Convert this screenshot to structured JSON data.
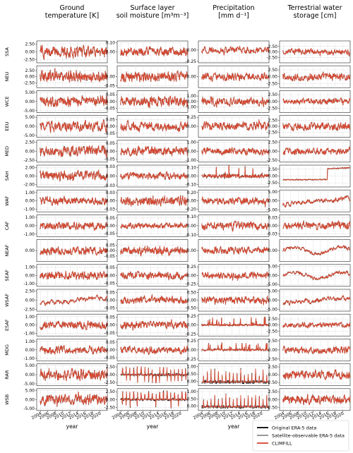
{
  "chart_data": {
    "type": "line",
    "title": "",
    "x_range": [
      2003,
      2022
    ],
    "columns": [
      {
        "title_lines": [
          "Ground",
          "temperature [K]"
        ],
        "variable": "Ground temperature",
        "unit": "K"
      },
      {
        "title_lines": [
          "Surface layer",
          "soil moisture [m³m⁻³]"
        ],
        "variable": "Surface layer soil moisture",
        "unit": "m³m⁻³"
      },
      {
        "title_lines": [
          "Precipitation",
          "[mm d⁻¹]"
        ],
        "variable": "Precipitation",
        "unit": "mm d⁻¹"
      },
      {
        "title_lines": [
          "Terrestrial water",
          "storage [cm]"
        ],
        "variable": "Terrestrial water storage",
        "unit": "cm"
      }
    ],
    "regions": [
      "SSA",
      "NEU",
      "WCE",
      "EEU",
      "MED",
      "SAH",
      "WAF",
      "CAF",
      "NEAF",
      "SEAF",
      "WSAF",
      "ESAF",
      "MDG",
      "RAR",
      "WSB"
    ],
    "panels": [
      [
        {
          "ylim": [
            -3.5,
            3.5
          ],
          "ticks": [
            "2.50",
            "0.00",
            "-2.50"
          ],
          "pattern": "noise",
          "amp": 2.0
        },
        {
          "ylim": [
            -0.12,
            0.12
          ],
          "ticks": [
            "0.10",
            "0.00"
          ],
          "pattern": "noise",
          "amp": 0.05
        },
        {
          "ylim": [
            -0.28,
            0.2
          ],
          "ticks": [
            "0.00",
            "-0.25"
          ],
          "pattern": "noise",
          "amp": 0.07
        },
        {
          "ylim": [
            -5,
            5
          ],
          "ticks": [
            "2.50",
            "0.00",
            "-2.50"
          ],
          "pattern": "noise",
          "amp": 1.5
        }
      ],
      [
        {
          "ylim": [
            -4.5,
            4.5
          ],
          "ticks": [
            "2.50",
            "0.00",
            "-2.50"
          ],
          "pattern": "noise",
          "amp": 2.5
        },
        {
          "ylim": [
            -0.06,
            0.06
          ],
          "ticks": [
            "0.00",
            "-0.05"
          ],
          "pattern": "noise",
          "amp": 0.03
        },
        {
          "ylim": [
            -0.8,
            0.8
          ],
          "ticks": [
            "0.00"
          ],
          "pattern": "noise",
          "amp": 0.3
        },
        {
          "ylim": [
            -4,
            4
          ],
          "ticks": [
            "2.50",
            "0.00",
            "-2.50"
          ],
          "pattern": "noise",
          "amp": 1.5
        }
      ],
      [
        {
          "ylim": [
            -6,
            6
          ],
          "ticks": [
            "5.00",
            "0.00",
            "-5.00"
          ],
          "pattern": "noise",
          "amp": 3.0
        },
        {
          "ylim": [
            -0.08,
            0.08
          ],
          "ticks": [
            "0.05",
            "0.00",
            "-0.05"
          ],
          "pattern": "noise",
          "amp": 0.04
        },
        {
          "ylim": [
            -2,
            2
          ],
          "ticks": [
            "1.00",
            "0.00",
            "-1.00"
          ],
          "pattern": "noise",
          "amp": 0.8
        },
        {
          "ylim": [
            -4,
            4
          ],
          "ticks": [
            "2.50",
            "0.00",
            "-2.50"
          ],
          "pattern": "noise",
          "amp": 1.2
        }
      ],
      [
        {
          "ylim": [
            -6,
            6
          ],
          "ticks": [
            "5.00",
            "0.00",
            "-5.00"
          ],
          "pattern": "noise",
          "amp": 3.0
        },
        {
          "ylim": [
            -0.08,
            0.08
          ],
          "ticks": [
            "0.05",
            "0.00",
            "-0.05"
          ],
          "pattern": "noise",
          "amp": 0.035
        },
        {
          "ylim": [
            -0.3,
            0.3
          ],
          "ticks": [
            "0.25",
            "0.00"
          ],
          "pattern": "noise",
          "amp": 0.12
        },
        {
          "ylim": [
            -4.5,
            4.5
          ],
          "ticks": [
            "2.50",
            "0.00",
            "-2.50"
          ],
          "pattern": "noise",
          "amp": 1.6
        }
      ],
      [
        {
          "ylim": [
            -3,
            3
          ],
          "ticks": [
            "2.50",
            "0.00",
            "-2.50"
          ],
          "pattern": "noise",
          "amp": 1.5
        },
        {
          "ylim": [
            -0.07,
            0.07
          ],
          "ticks": [
            "0.05",
            "0.00",
            "-0.05"
          ],
          "pattern": "noise",
          "amp": 0.03
        },
        {
          "ylim": [
            -1.2,
            1.2
          ],
          "ticks": [
            "1.00",
            "0.00",
            "-1.00"
          ],
          "pattern": "noise",
          "amp": 0.4
        },
        {
          "ylim": [
            -3,
            3
          ],
          "ticks": [
            "2.50",
            "0.00",
            "-2.50"
          ],
          "pattern": "noise",
          "amp": 1.0
        }
      ],
      [
        {
          "ylim": [
            -2.6,
            2.6
          ],
          "ticks": [
            "2.00",
            "0.00",
            "-2.00"
          ],
          "pattern": "noise",
          "amp": 1.2
        },
        {
          "ylim": [
            -0.035,
            0.035
          ],
          "ticks": [
            "0.03",
            "0.00",
            "-0.03"
          ],
          "pattern": "noise",
          "amp": 0.012
        },
        {
          "ylim": [
            -0.13,
            0.13
          ],
          "ticks": [
            "0.10",
            "0.00",
            "-0.10"
          ],
          "pattern": "spiky",
          "amp": 0.08
        },
        {
          "ylim": [
            -4,
            4
          ],
          "ticks": [
            "2.50",
            "0.00",
            "-2.50"
          ],
          "pattern": "step",
          "amp": 1.2
        }
      ],
      [
        {
          "ylim": [
            -1.3,
            1.3
          ],
          "ticks": [
            "1.00",
            "0.00",
            "-1.00"
          ],
          "pattern": "noise",
          "amp": 0.5
        },
        {
          "ylim": [
            -0.04,
            0.04
          ],
          "ticks": [
            "0.03",
            "0.00",
            "-0.03"
          ],
          "pattern": "noise",
          "amp": 0.018
        },
        {
          "ylim": [
            -0.26,
            0.26
          ],
          "ticks": [
            "0.20",
            "0.00",
            "-0.20"
          ],
          "pattern": "noise",
          "amp": 0.09
        },
        {
          "ylim": [
            -6,
            6
          ],
          "ticks": [
            "5.00",
            "0.00",
            "-5.00"
          ],
          "pattern": "trend",
          "amp": 2.0
        }
      ],
      [
        {
          "ylim": [
            -1.3,
            1.3
          ],
          "ticks": [
            "1.00",
            "0.00",
            "-1.00"
          ],
          "pattern": "noise",
          "amp": 0.5
        },
        {
          "ylim": [
            -0.07,
            0.07
          ],
          "ticks": [
            "0.05",
            "0.00",
            "-0.05"
          ],
          "pattern": "noise",
          "amp": 0.02
        },
        {
          "ylim": [
            -0.12,
            0.12
          ],
          "ticks": [
            "0.10",
            "0.00",
            "-0.10"
          ],
          "pattern": "noise",
          "amp": 0.05
        },
        {
          "ylim": [
            -0.04,
            0.04
          ],
          "ticks": [
            "0.03",
            "0.00",
            "-0.03"
          ],
          "pattern": "noise",
          "amp": 0.015
        }
      ],
      [
        {
          "ylim": [
            -1.6,
            1.6
          ],
          "ticks": [
            "0.00"
          ],
          "pattern": "noise",
          "amp": 0.6
        },
        {
          "ylim": [
            -0.1,
            0.1
          ],
          "ticks": [
            "0.05",
            "0.00",
            "-0.05"
          ],
          "pattern": "noise",
          "amp": 0.04
        },
        {
          "ylim": [
            -0.6,
            0.6
          ],
          "ticks": [
            "0.00"
          ],
          "pattern": "noise",
          "amp": 0.2
        },
        {
          "ylim": [
            -6,
            6
          ],
          "ticks": [
            "0.00"
          ],
          "pattern": "wave",
          "amp": 2.0
        }
      ],
      [
        {
          "ylim": [
            -1.3,
            1.3
          ],
          "ticks": [
            "1.00",
            "0.00",
            "-1.00"
          ],
          "pattern": "noise",
          "amp": 0.5
        },
        {
          "ylim": [
            -0.07,
            0.07
          ],
          "ticks": [
            "0.05",
            "0.00",
            "-0.05"
          ],
          "pattern": "noise",
          "amp": 0.025
        },
        {
          "ylim": [
            -0.32,
            0.32
          ],
          "ticks": [
            "0.25",
            "0.00",
            "-0.25"
          ],
          "pattern": "noise",
          "amp": 0.1
        },
        {
          "ylim": [
            -6,
            6
          ],
          "ticks": [
            "5.00",
            "0.00",
            "-5.00"
          ],
          "pattern": "wave",
          "amp": 2.0
        }
      ],
      [
        {
          "ylim": [
            -3,
            3
          ],
          "ticks": [
            "2.50",
            "0.00",
            "-2.50"
          ],
          "pattern": "trend",
          "amp": 1.0
        },
        {
          "ylim": [
            -0.07,
            0.07
          ],
          "ticks": [
            "0.05",
            "0.00",
            "-0.05"
          ],
          "pattern": "noise",
          "amp": 0.025
        },
        {
          "ylim": [
            -0.7,
            0.7
          ],
          "ticks": [
            "0.50",
            "0.00",
            "-0.50"
          ],
          "pattern": "noise",
          "amp": 0.25
        },
        {
          "ylim": [
            -6,
            6
          ],
          "ticks": [
            "5.00",
            "0.00",
            "-5.00"
          ],
          "pattern": "trend",
          "amp": 2.0
        }
      ],
      [
        {
          "ylim": [
            -1.3,
            1.3
          ],
          "ticks": [
            "1.00",
            "0.00",
            "-1.00"
          ],
          "pattern": "noise",
          "amp": 0.5
        },
        {
          "ylim": [
            -0.07,
            0.07
          ],
          "ticks": [
            "0.05",
            "0.00",
            "-0.05"
          ],
          "pattern": "noise",
          "amp": 0.025
        },
        {
          "ylim": [
            -0.3,
            0.3
          ],
          "ticks": [
            "0.25",
            "0.00",
            "-0.25"
          ],
          "pattern": "spiky",
          "amp": 0.1
        },
        {
          "ylim": [
            -4.5,
            4.5
          ],
          "ticks": [
            "2.50",
            "0.00",
            "-2.50"
          ],
          "pattern": "noise",
          "amp": 1.2
        }
      ],
      [
        {
          "ylim": [
            -1.3,
            1.3
          ],
          "ticks": [
            "1.00",
            "0.00",
            "-1.00"
          ],
          "pattern": "noise",
          "amp": 0.5
        },
        {
          "ylim": [
            -0.07,
            0.07
          ],
          "ticks": [
            "0.05",
            "0.00",
            "-0.05"
          ],
          "pattern": "noise",
          "amp": 0.025
        },
        {
          "ylim": [
            -0.3,
            0.3
          ],
          "ticks": [
            "0.25",
            "0.00",
            "-0.25"
          ],
          "pattern": "spiky",
          "amp": 0.1
        },
        {
          "ylim": [
            -3,
            3
          ],
          "ticks": [
            "2.50",
            "0.00",
            "-2.50"
          ],
          "pattern": "noise",
          "amp": 1.0
        }
      ],
      [
        {
          "ylim": [
            -6,
            6
          ],
          "ticks": [
            "5.00",
            "0.00",
            "-5.00"
          ],
          "pattern": "noise",
          "amp": 3.0
        },
        {
          "ylim": [
            -3.5,
            3.5
          ],
          "ticks": [
            "2.50",
            "0.00",
            "-2.50"
          ],
          "pattern": "bursts",
          "amp": 3.0
        },
        {
          "ylim": [
            -0.3,
            1.2
          ],
          "ticks": [
            "1.00",
            "0.50",
            "0.00"
          ],
          "pattern": "pos_spikes",
          "amp": 0.9
        },
        {
          "ylim": [
            -3.5,
            3.5
          ],
          "ticks": [
            "2.50",
            "0.00",
            "-2.50"
          ],
          "pattern": "noise",
          "amp": 1.5
        }
      ],
      [
        {
          "ylim": [
            -6,
            6
          ],
          "ticks": [
            "5.00",
            "0.00",
            "-5.00"
          ],
          "pattern": "noise",
          "amp": 3.0
        },
        {
          "ylim": [
            -3.5,
            3.5
          ],
          "ticks": [
            "2.50",
            "0.00",
            "-2.50"
          ],
          "pattern": "bursts",
          "amp": 3.0
        },
        {
          "ylim": [
            -0.3,
            1.2
          ],
          "ticks": [
            "1.00",
            "0.50",
            "0.00"
          ],
          "pattern": "pos_spikes",
          "amp": 0.9
        },
        {
          "ylim": [
            -3.5,
            3.5
          ],
          "ticks": [
            "2.50",
            "0.00",
            "-2.50"
          ],
          "pattern": "noise",
          "amp": 1.5
        }
      ]
    ],
    "x_ticks": [
      "2004",
      "2006",
      "2008",
      "2010",
      "2012",
      "2014",
      "2016",
      "2018",
      "2020"
    ],
    "xlabel": "year",
    "grid": true,
    "legend_position": "bottom-right",
    "series": [
      {
        "name": "Original ERA-5 data",
        "color": "#000000"
      },
      {
        "name": "Satellite-observable ERA-5 data",
        "color": "#8c8c8c"
      },
      {
        "name": "CLIMFILL",
        "color": "#d9472f"
      }
    ]
  }
}
